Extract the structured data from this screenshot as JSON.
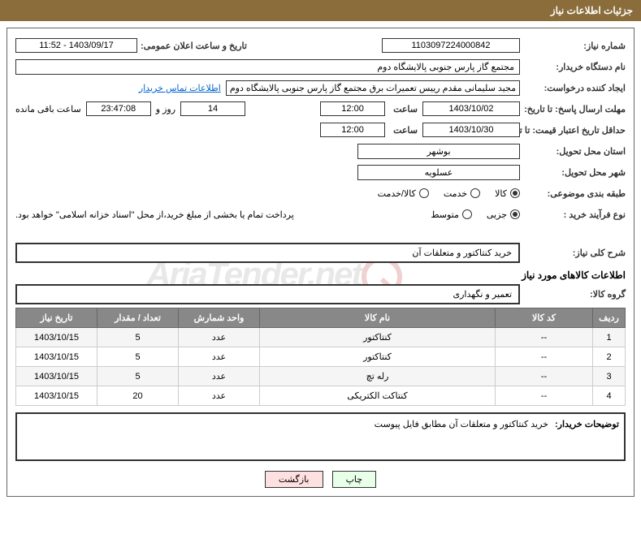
{
  "header": {
    "title": "جزئیات اطلاعات نیاز"
  },
  "fields": {
    "need_number_label": "شماره نیاز:",
    "need_number": "1103097224000842",
    "announce_label": "تاریخ و ساعت اعلان عمومی:",
    "announce_value": "1403/09/17 - 11:52",
    "buyer_org_label": "نام دستگاه خریدار:",
    "buyer_org": "مجتمع گاز پارس جنوبی  پالایشگاه دوم",
    "requester_label": "ایجاد کننده درخواست:",
    "requester": "مجید سلیمانی مقدم رییس تعمیرات برق مجتمع گاز پارس جنوبی  پالایشگاه دوم",
    "contact_link": "اطلاعات تماس خریدار",
    "response_deadline_label": "مهلت ارسال پاسخ: تا تاریخ:",
    "response_date": "1403/10/02",
    "time_label": "ساعت",
    "response_time": "12:00",
    "days_count": "14",
    "days_and": "روز و",
    "countdown": "23:47:08",
    "remaining": "ساعت باقی مانده",
    "validity_label": "حداقل تاریخ اعتبار قیمت: تا تاریخ:",
    "validity_date": "1403/10/30",
    "validity_time": "12:00",
    "province_label": "استان محل تحویل:",
    "province": "بوشهر",
    "city_label": "شهر محل تحویل:",
    "city": "عسلویه",
    "category_label": "طبقه بندی موضوعی:",
    "radio_goods": "کالا",
    "radio_service": "خدمت",
    "radio_goods_service": "کالا/خدمت",
    "purchase_type_label": "نوع فرآیند خرید :",
    "radio_partial": "جزیی",
    "radio_medium": "متوسط",
    "payment_note": "پرداخت تمام یا بخشی از مبلغ خرید،از محل \"اسناد خزانه اسلامی\" خواهد بود.",
    "general_desc_label": "شرح کلی نیاز:",
    "general_desc": "خرید کنتاکتور و متعلقات آن",
    "goods_info_title": "اطلاعات کالاهای مورد نیاز",
    "group_label": "گروه کالا:",
    "group_value": "تعمیر و نگهداری",
    "buyer_notes_label": "توضیحات خریدار:",
    "buyer_notes": "خرید کنتاکتور و متعلقات آن مطابق فایل پیوست"
  },
  "table": {
    "headers": {
      "row": "ردیف",
      "code": "کد کالا",
      "name": "نام کالا",
      "unit": "واحد شمارش",
      "qty": "تعداد / مقدار",
      "date": "تاریخ نیاز"
    },
    "rows": [
      {
        "row": "1",
        "code": "--",
        "name": "کنتاکتور",
        "unit": "عدد",
        "qty": "5",
        "date": "1403/10/15"
      },
      {
        "row": "2",
        "code": "--",
        "name": "کنتاکتور",
        "unit": "عدد",
        "qty": "5",
        "date": "1403/10/15"
      },
      {
        "row": "3",
        "code": "--",
        "name": "رله تچ",
        "unit": "عدد",
        "qty": "5",
        "date": "1403/10/15"
      },
      {
        "row": "4",
        "code": "--",
        "name": "کنتاکت الکتریکی",
        "unit": "عدد",
        "qty": "20",
        "date": "1403/10/15"
      }
    ]
  },
  "buttons": {
    "print": "چاپ",
    "back": "بازگشت"
  },
  "watermark": "AriaTender.net",
  "colors": {
    "header_bg": "#8a6d3b",
    "th_bg": "#888888",
    "border": "#333333"
  }
}
